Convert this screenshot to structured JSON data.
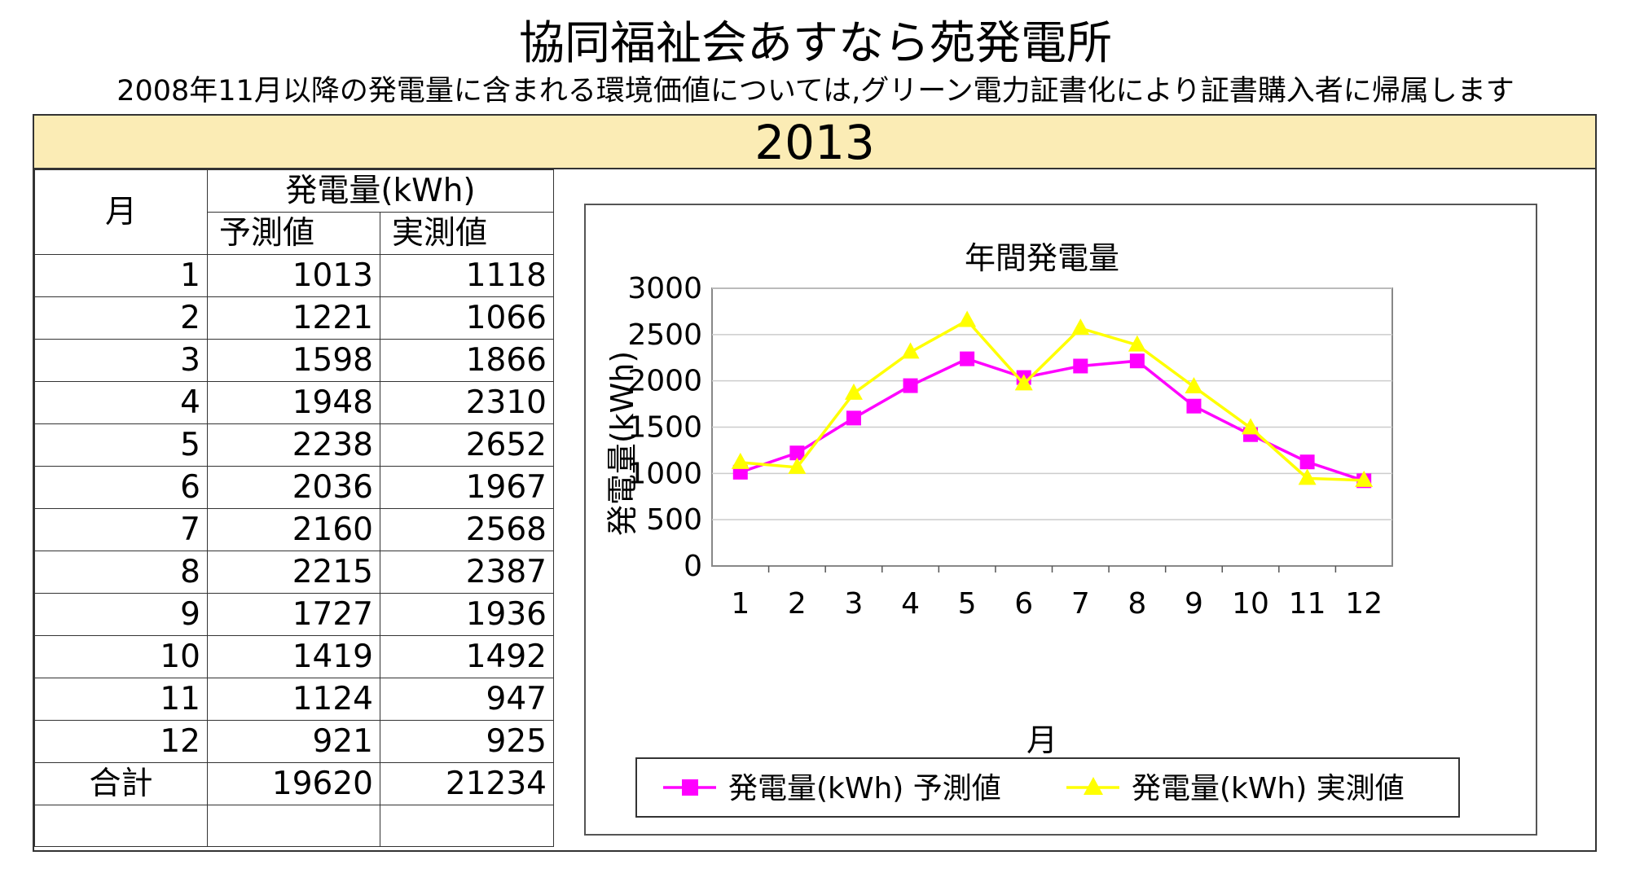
{
  "header": {
    "title": "協同福祉会あすなら苑発電所",
    "subtitle": "2008年11月以降の発電量に含まれる環境価値については,グリーン電力証書化により証書購入者に帰属します",
    "year": "2013"
  },
  "table": {
    "month_header": "月",
    "group_header": "発電量(kWh)",
    "col_forecast": "予測値",
    "col_actual": "実測値",
    "rows": [
      {
        "month": "1",
        "forecast": "1013",
        "actual": "1118"
      },
      {
        "month": "2",
        "forecast": "1221",
        "actual": "1066"
      },
      {
        "month": "3",
        "forecast": "1598",
        "actual": "1866"
      },
      {
        "month": "4",
        "forecast": "1948",
        "actual": "2310"
      },
      {
        "month": "5",
        "forecast": "2238",
        "actual": "2652"
      },
      {
        "month": "6",
        "forecast": "2036",
        "actual": "1967"
      },
      {
        "month": "7",
        "forecast": "2160",
        "actual": "2568"
      },
      {
        "month": "8",
        "forecast": "2215",
        "actual": "2387"
      },
      {
        "month": "9",
        "forecast": "1727",
        "actual": "1936"
      },
      {
        "month": "10",
        "forecast": "1419",
        "actual": "1492"
      },
      {
        "month": "11",
        "forecast": "1124",
        "actual": "947"
      },
      {
        "month": "12",
        "forecast": "921",
        "actual": "925"
      }
    ],
    "total_label": "合計",
    "total_forecast": "19620",
    "total_actual": "21234"
  },
  "chart_data": {
    "type": "line",
    "title": "年間発電量",
    "xlabel": "月",
    "ylabel": "発電量(kWh)",
    "categories": [
      "1",
      "2",
      "3",
      "4",
      "5",
      "6",
      "7",
      "8",
      "9",
      "10",
      "11",
      "12"
    ],
    "ylim": [
      0,
      3000
    ],
    "yticks": [
      0,
      500,
      1000,
      1500,
      2000,
      2500,
      3000
    ],
    "grid": true,
    "legend": "bottom",
    "series": [
      {
        "name": "発電量(kWh) 予測値",
        "color": "#ff00ff",
        "marker": "square",
        "values": [
          1013,
          1221,
          1598,
          1948,
          2238,
          2036,
          2160,
          2215,
          1727,
          1419,
          1124,
          921
        ]
      },
      {
        "name": "発電量(kWh) 実測値",
        "color": "#ffff00",
        "marker": "triangle",
        "values": [
          1118,
          1066,
          1866,
          2310,
          2652,
          1967,
          2568,
          2387,
          1936,
          1492,
          947,
          925
        ]
      }
    ]
  }
}
